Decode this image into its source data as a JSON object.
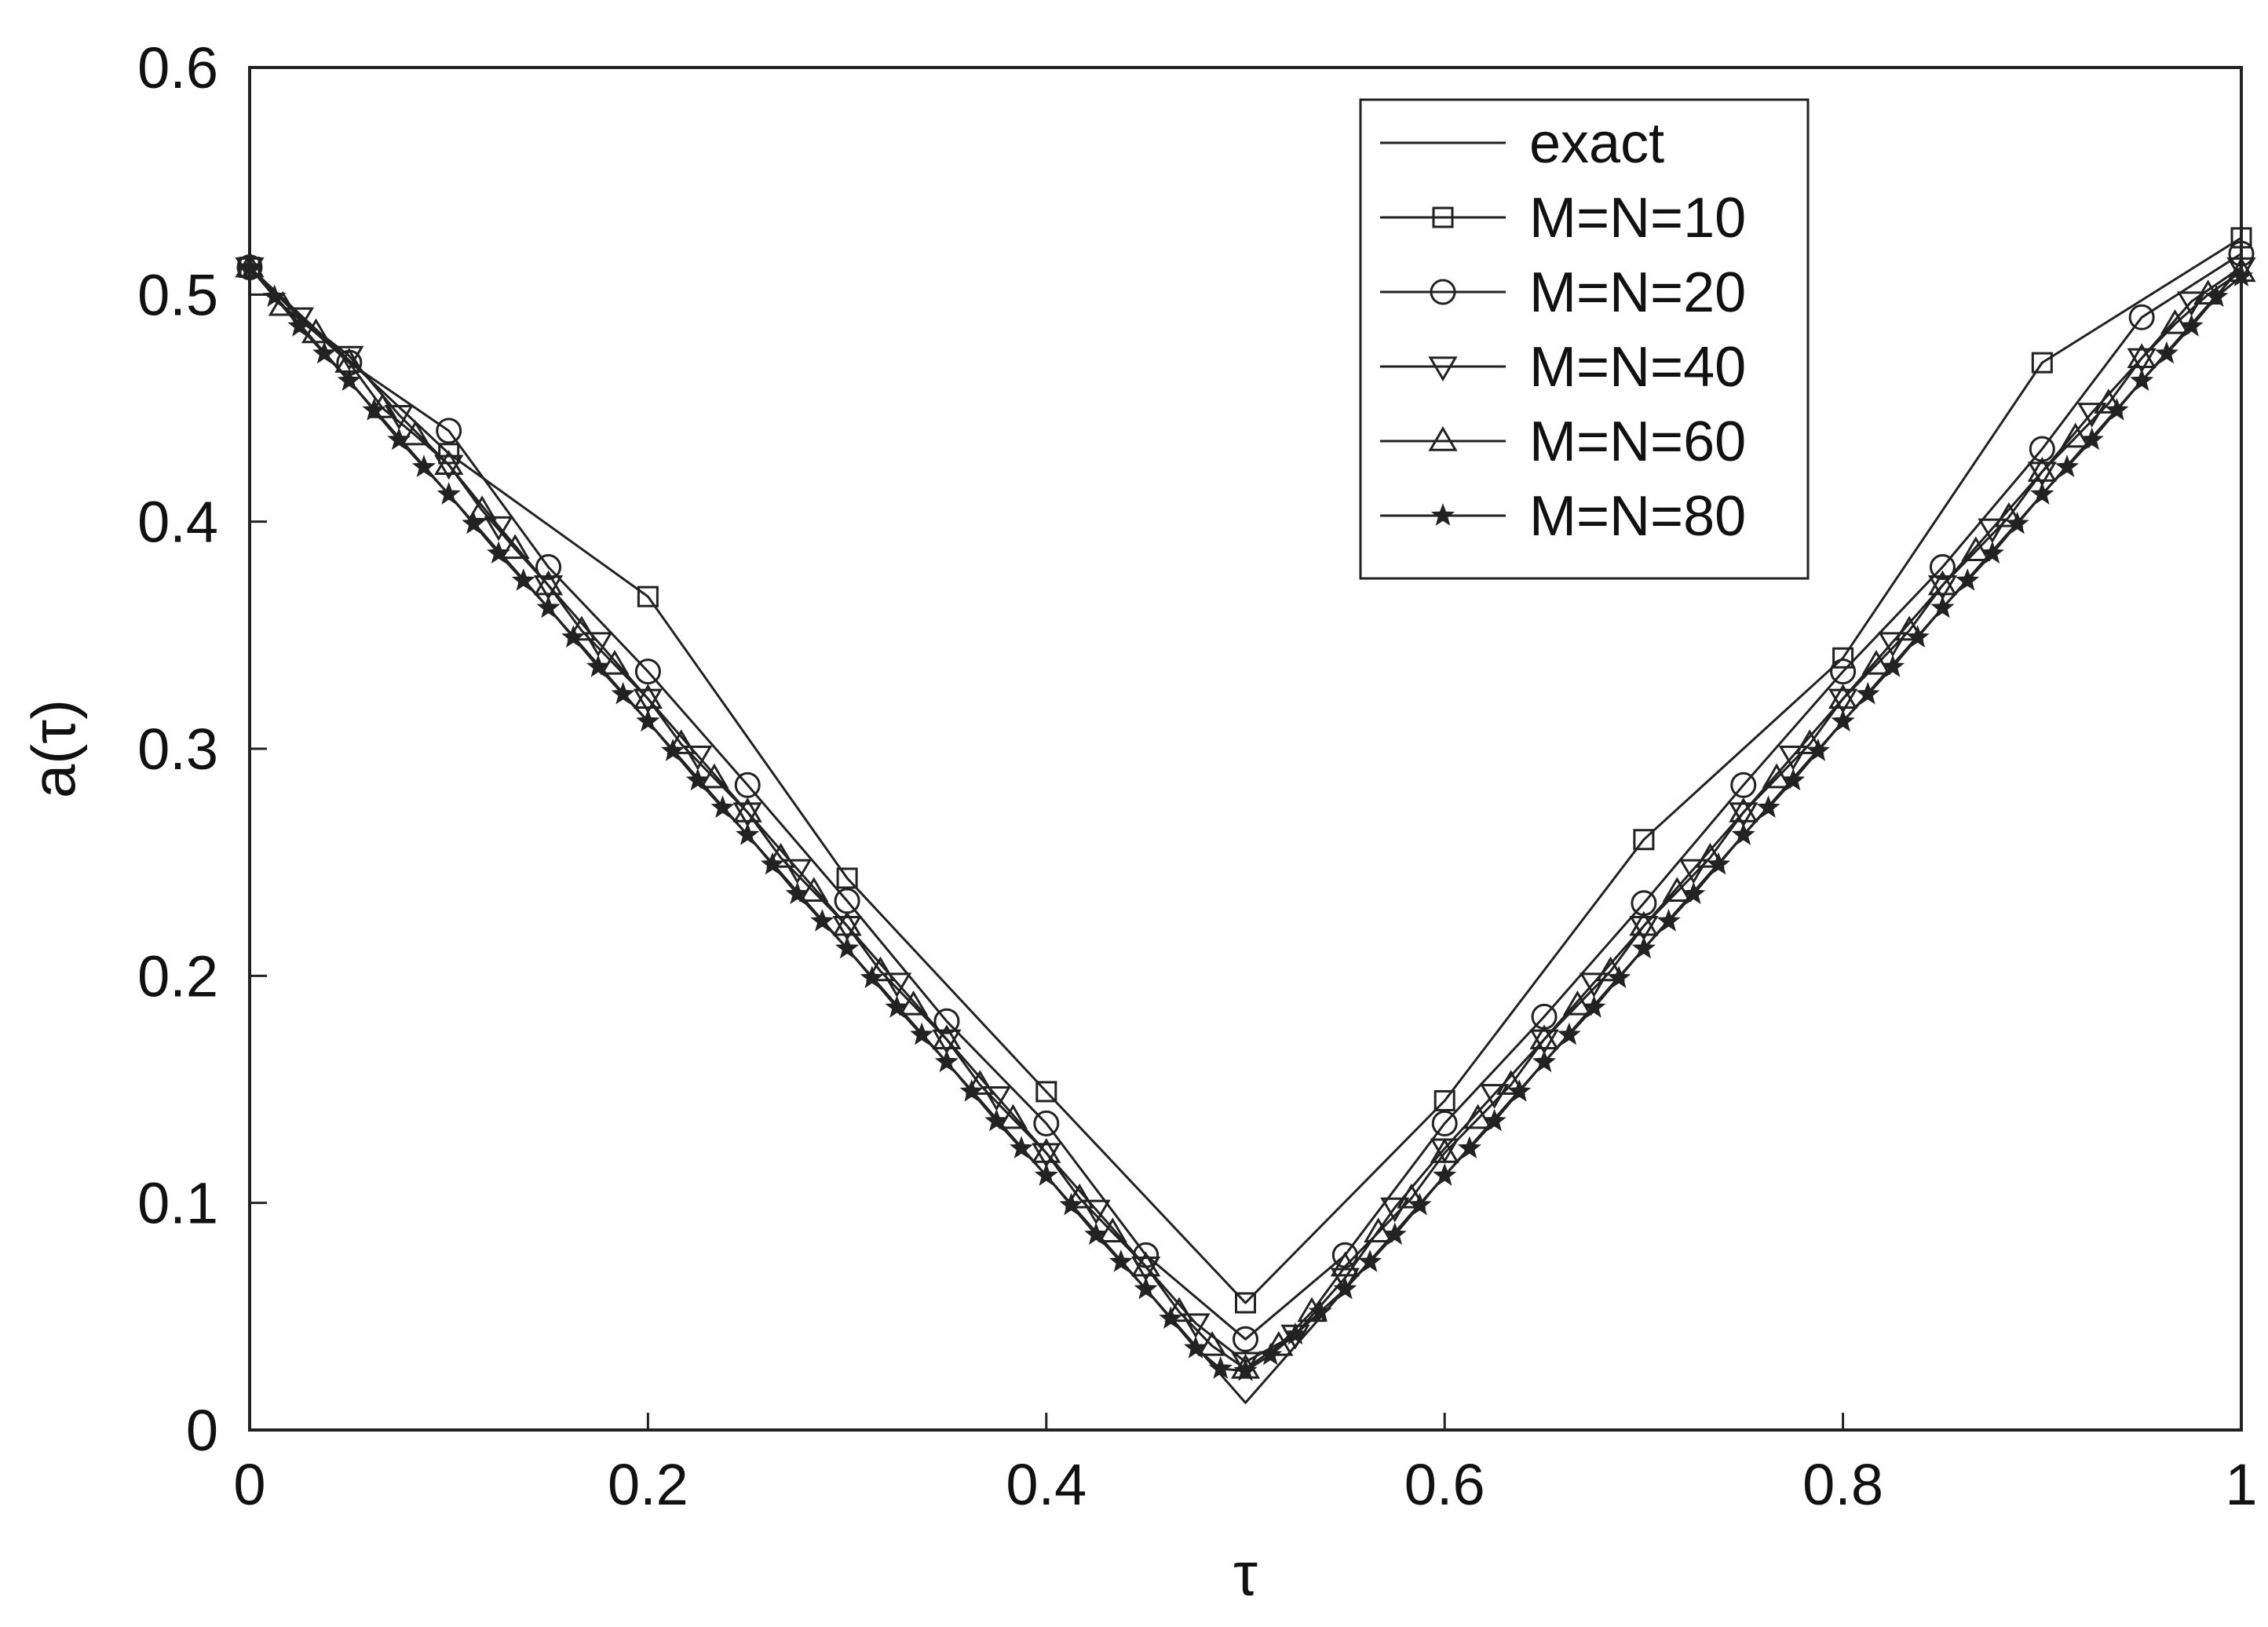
{
  "chart_data": {
    "type": "line",
    "title": "",
    "xlabel": "τ",
    "ylabel": "a(τ)",
    "xlim": [
      0,
      1
    ],
    "ylim": [
      0,
      0.6
    ],
    "xticks": [
      0,
      0.2,
      0.4,
      0.6,
      0.8,
      1
    ],
    "xtick_labels": [
      "0",
      "0.2",
      "0.4",
      "0.6",
      "0.8",
      "1"
    ],
    "yticks": [
      0,
      0.1,
      0.2,
      0.3,
      0.4,
      0.5,
      0.6
    ],
    "ytick_labels": [
      "0",
      "0.1",
      "0.2",
      "0.3",
      "0.4",
      "0.5",
      "0.6"
    ],
    "grid": false,
    "legend_position": "top-right",
    "series": [
      {
        "name": "exact",
        "marker": "none",
        "x": [
          0,
          0.5,
          1
        ],
        "y": [
          0.512,
          0.012,
          0.512
        ]
      },
      {
        "name": "M=N=10",
        "marker": "square",
        "x": [
          0,
          0.1,
          0.2,
          0.3,
          0.4,
          0.5,
          0.6,
          0.7,
          0.8,
          0.9,
          1
        ],
        "y": [
          0.512,
          0.43,
          0.367,
          0.243,
          0.149,
          0.056,
          0.145,
          0.26,
          0.34,
          0.47,
          0.525
        ]
      },
      {
        "name": "M=N=20",
        "marker": "circle",
        "x": [
          0,
          0.05,
          0.1,
          0.15,
          0.2,
          0.25,
          0.3,
          0.35,
          0.4,
          0.45,
          0.5,
          0.55,
          0.6,
          0.65,
          0.7,
          0.75,
          0.8,
          0.85,
          0.9,
          0.95,
          1
        ],
        "y": [
          0.512,
          0.47,
          0.44,
          0.38,
          0.334,
          0.284,
          0.233,
          0.18,
          0.135,
          0.077,
          0.04,
          0.077,
          0.135,
          0.182,
          0.232,
          0.284,
          0.334,
          0.38,
          0.432,
          0.49,
          0.518
        ]
      },
      {
        "name": "M=N=40",
        "marker": "triangle-down",
        "x": [
          0,
          0.025,
          0.05,
          0.075,
          0.1,
          0.125,
          0.15,
          0.175,
          0.2,
          0.225,
          0.25,
          0.275,
          0.3,
          0.325,
          0.35,
          0.375,
          0.4,
          0.425,
          0.45,
          0.475,
          0.5,
          0.525,
          0.55,
          0.575,
          0.6,
          0.625,
          0.65,
          0.675,
          0.7,
          0.725,
          0.75,
          0.775,
          0.8,
          0.825,
          0.85,
          0.875,
          0.9,
          0.925,
          0.95,
          0.975,
          1
        ],
        "y": [
          0.512,
          0.49,
          0.473,
          0.447,
          0.425,
          0.398,
          0.372,
          0.347,
          0.322,
          0.297,
          0.272,
          0.247,
          0.222,
          0.197,
          0.172,
          0.147,
          0.122,
          0.097,
          0.072,
          0.047,
          0.03,
          0.042,
          0.067,
          0.098,
          0.124,
          0.148,
          0.172,
          0.197,
          0.222,
          0.247,
          0.272,
          0.297,
          0.322,
          0.347,
          0.372,
          0.397,
          0.422,
          0.448,
          0.472,
          0.497,
          0.512
        ]
      },
      {
        "name": "M=N=60",
        "marker": "triangle-up",
        "x": [
          0,
          0.0167,
          0.0333,
          0.05,
          0.0667,
          0.0833,
          0.1,
          0.1167,
          0.1333,
          0.15,
          0.1667,
          0.1833,
          0.2,
          0.2167,
          0.2333,
          0.25,
          0.2667,
          0.2833,
          0.3,
          0.3167,
          0.3333,
          0.35,
          0.3667,
          0.3833,
          0.4,
          0.4167,
          0.4333,
          0.45,
          0.4667,
          0.4833,
          0.5,
          0.5167,
          0.5333,
          0.55,
          0.5667,
          0.5833,
          0.6,
          0.6167,
          0.6333,
          0.65,
          0.6667,
          0.6833,
          0.7,
          0.7167,
          0.7333,
          0.75,
          0.7667,
          0.7833,
          0.8,
          0.8167,
          0.8333,
          0.85,
          0.8667,
          0.8833,
          0.9,
          0.9167,
          0.9333,
          0.95,
          0.9667,
          0.9833,
          1
        ],
        "y": [
          0.512,
          0.495,
          0.483,
          0.47,
          0.45,
          0.438,
          0.425,
          0.405,
          0.388,
          0.372,
          0.352,
          0.337,
          0.322,
          0.302,
          0.287,
          0.272,
          0.252,
          0.237,
          0.222,
          0.202,
          0.187,
          0.172,
          0.152,
          0.137,
          0.122,
          0.102,
          0.087,
          0.072,
          0.052,
          0.037,
          0.027,
          0.037,
          0.052,
          0.072,
          0.087,
          0.102,
          0.122,
          0.137,
          0.152,
          0.172,
          0.187,
          0.202,
          0.222,
          0.237,
          0.252,
          0.272,
          0.287,
          0.302,
          0.322,
          0.337,
          0.352,
          0.372,
          0.387,
          0.402,
          0.422,
          0.437,
          0.452,
          0.472,
          0.487,
          0.5,
          0.51
        ]
      },
      {
        "name": "M=N=80",
        "marker": "star",
        "x": [
          0,
          0.0125,
          0.025,
          0.0375,
          0.05,
          0.0625,
          0.075,
          0.0875,
          0.1,
          0.1125,
          0.125,
          0.1375,
          0.15,
          0.1625,
          0.175,
          0.1875,
          0.2,
          0.2125,
          0.225,
          0.2375,
          0.25,
          0.2625,
          0.275,
          0.2875,
          0.3,
          0.3125,
          0.325,
          0.3375,
          0.35,
          0.3625,
          0.375,
          0.3875,
          0.4,
          0.4125,
          0.425,
          0.4375,
          0.45,
          0.4625,
          0.475,
          0.4875,
          0.5,
          0.5125,
          0.525,
          0.5375,
          0.55,
          0.5625,
          0.575,
          0.5875,
          0.6,
          0.6125,
          0.625,
          0.6375,
          0.65,
          0.6625,
          0.675,
          0.6875,
          0.7,
          0.7125,
          0.725,
          0.7375,
          0.75,
          0.7625,
          0.775,
          0.7875,
          0.8,
          0.8125,
          0.825,
          0.8375,
          0.85,
          0.8625,
          0.875,
          0.8875,
          0.9,
          0.9125,
          0.925,
          0.9375,
          0.95,
          0.9625,
          0.975,
          0.9875,
          1
        ],
        "y": [
          0.512,
          0.499,
          0.486,
          0.474,
          0.462,
          0.449,
          0.436,
          0.424,
          0.412,
          0.399,
          0.386,
          0.374,
          0.362,
          0.349,
          0.336,
          0.324,
          0.312,
          0.299,
          0.286,
          0.274,
          0.262,
          0.249,
          0.236,
          0.224,
          0.212,
          0.199,
          0.186,
          0.174,
          0.162,
          0.149,
          0.136,
          0.124,
          0.112,
          0.099,
          0.086,
          0.074,
          0.062,
          0.049,
          0.036,
          0.027,
          0.026,
          0.033,
          0.042,
          0.052,
          0.062,
          0.074,
          0.086,
          0.099,
          0.112,
          0.124,
          0.136,
          0.149,
          0.162,
          0.174,
          0.186,
          0.199,
          0.212,
          0.224,
          0.236,
          0.249,
          0.262,
          0.274,
          0.286,
          0.299,
          0.312,
          0.324,
          0.336,
          0.349,
          0.362,
          0.374,
          0.386,
          0.399,
          0.412,
          0.424,
          0.436,
          0.449,
          0.462,
          0.474,
          0.486,
          0.499,
          0.508
        ]
      }
    ]
  }
}
